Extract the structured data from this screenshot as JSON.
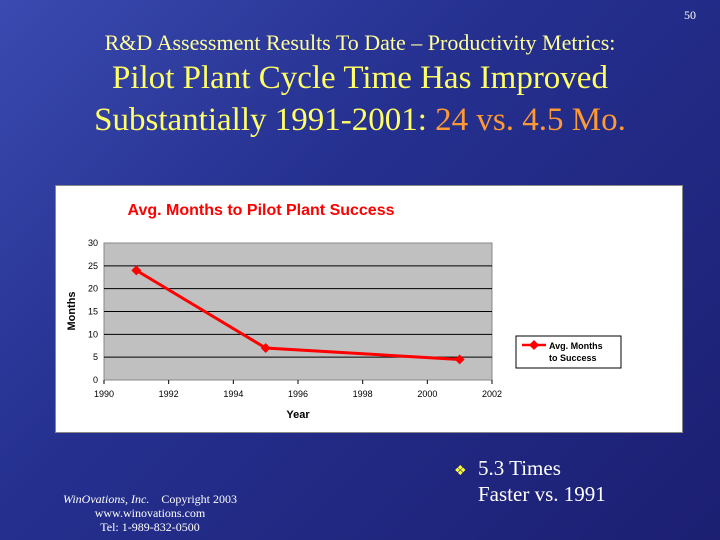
{
  "page_number": "50",
  "subtitle": "R&D Assessment Results To Date – Productivity Metrics:",
  "title_line1": "Pilot Plant Cycle Time Has Improved",
  "title_line2_prefix": "Substantially 1991-2001: ",
  "title_line2_highlight": "24 vs. 4.5 Mo.",
  "bullet": {
    "icon": "diamond-bullet-icon",
    "line1": "5.3 Times",
    "line2": "Faster vs. 1991"
  },
  "footer": {
    "company": "WinOvations, Inc.",
    "copyright": "Copyright 2003",
    "web": "www.winovations.com",
    "tel": "Tel:  1-989-832-0500"
  },
  "colors": {
    "series": "#ff0000",
    "plot_bg": "#c0c0c0",
    "title": "#ff0000"
  },
  "chart_data": {
    "type": "line",
    "title": "Avg. Months to Pilot Plant Success",
    "xlabel": "Year",
    "ylabel": "Months",
    "xlim": [
      1990,
      2002
    ],
    "ylim": [
      0,
      30
    ],
    "xticks": [
      "1990",
      "1992",
      "1994",
      "1996",
      "1998",
      "2000",
      "2002"
    ],
    "yticks": [
      "0",
      "5",
      "10",
      "15",
      "20",
      "25",
      "30"
    ],
    "series": [
      {
        "name": "Avg. Months to Success",
        "legend_line1": "Avg. Months",
        "legend_line2": "to Success",
        "x": [
          1991,
          1995,
          2001
        ],
        "y": [
          24,
          7,
          4.5
        ]
      }
    ],
    "grid": "horizontal",
    "legend": "right"
  }
}
